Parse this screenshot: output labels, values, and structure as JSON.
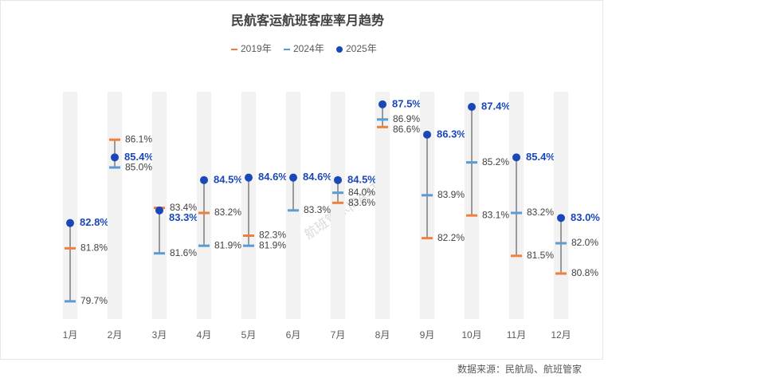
{
  "chart_data": {
    "type": "dumbbell",
    "title": "民航客运航班客座率月趋势",
    "categories": [
      "1月",
      "2月",
      "3月",
      "4月",
      "5月",
      "6月",
      "7月",
      "8月",
      "9月",
      "10月",
      "11月",
      "12月"
    ],
    "series": [
      {
        "name": "2019年",
        "color": "#f07f3c",
        "marker": "dash",
        "values": [
          81.8,
          86.1,
          83.4,
          83.2,
          82.3,
          null,
          83.6,
          86.6,
          82.2,
          83.1,
          81.5,
          80.8
        ],
        "value_labels": [
          "81.8%",
          "86.1%",
          "83.4%",
          "83.2%",
          "82.3%",
          null,
          "83.6%",
          "86.6%",
          "82.2%",
          "83.1%",
          "81.5%",
          "80.8%"
        ]
      },
      {
        "name": "2024年",
        "color": "#5b9bd5",
        "marker": "dash",
        "values": [
          79.7,
          85.0,
          81.6,
          81.9,
          81.9,
          83.3,
          84.0,
          86.9,
          83.9,
          85.2,
          83.2,
          82.0
        ],
        "value_labels": [
          "79.7%",
          "85.0%",
          "81.6%",
          "81.9%",
          "81.9%",
          "83.3%",
          "84.0%",
          "86.9%",
          "83.9%",
          "85.2%",
          "83.2%",
          "82.0%"
        ]
      },
      {
        "name": "2025年",
        "color": "#1a47b8",
        "marker": "dot",
        "values": [
          82.8,
          85.4,
          83.3,
          84.5,
          84.6,
          84.6,
          84.5,
          87.5,
          86.3,
          87.4,
          85.4,
          83.0
        ],
        "value_labels": [
          "82.8%",
          "85.4%",
          "83.3%",
          "84.5%",
          "84.6%",
          "84.6%",
          "84.5%",
          "87.5%",
          "86.3%",
          "87.4%",
          "85.4%",
          "83.0%"
        ]
      }
    ],
    "ylim": [
      79,
      88
    ],
    "watermark": "航班管家|DAST",
    "source": "数据来源：民航局、航班管家"
  }
}
